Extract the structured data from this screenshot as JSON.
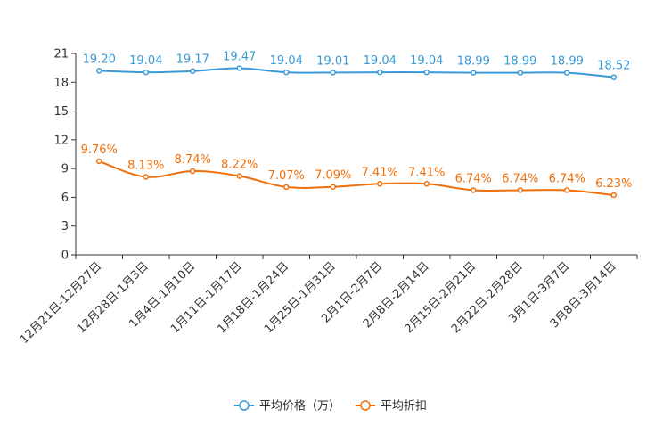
{
  "chart_data": {
    "type": "line",
    "categories": [
      "12月21日-12月27日",
      "12月28日-1月3日",
      "1月4日-1月10日",
      "1月11日-1月17日",
      "1月18日-1月24日",
      "1月25日-1月31日",
      "2月1日-2月7日",
      "2月8日-2月14日",
      "2月15日-2月21日",
      "2月22日-2月28日",
      "3月1日-3月7日",
      "3月8日-3月14日"
    ],
    "ylim": [
      0,
      21
    ],
    "yticks": [
      0,
      3,
      6,
      9,
      12,
      15,
      18,
      21
    ],
    "series": [
      {
        "name": "平均价格（万）",
        "color": "#3a9ad9",
        "values": [
          19.2,
          19.04,
          19.17,
          19.47,
          19.04,
          19.01,
          19.04,
          19.04,
          18.99,
          18.99,
          18.99,
          18.52
        ],
        "labels": [
          "19.20",
          "19.04",
          "19.17",
          "19.47",
          "19.04",
          "19.01",
          "19.04",
          "19.04",
          "18.99",
          "18.99",
          "18.99",
          "18.52"
        ]
      },
      {
        "name": "平均折扣",
        "color": "#f06f0a",
        "values": [
          9.76,
          8.13,
          8.74,
          8.22,
          7.07,
          7.09,
          7.41,
          7.41,
          6.74,
          6.74,
          6.74,
          6.23
        ],
        "labels": [
          "9.76%",
          "8.13%",
          "8.74%",
          "8.22%",
          "7.07%",
          "7.09%",
          "7.41%",
          "7.41%",
          "6.74%",
          "6.74%",
          "6.74%",
          "6.23%"
        ]
      }
    ],
    "legend_position": "bottom-center"
  }
}
